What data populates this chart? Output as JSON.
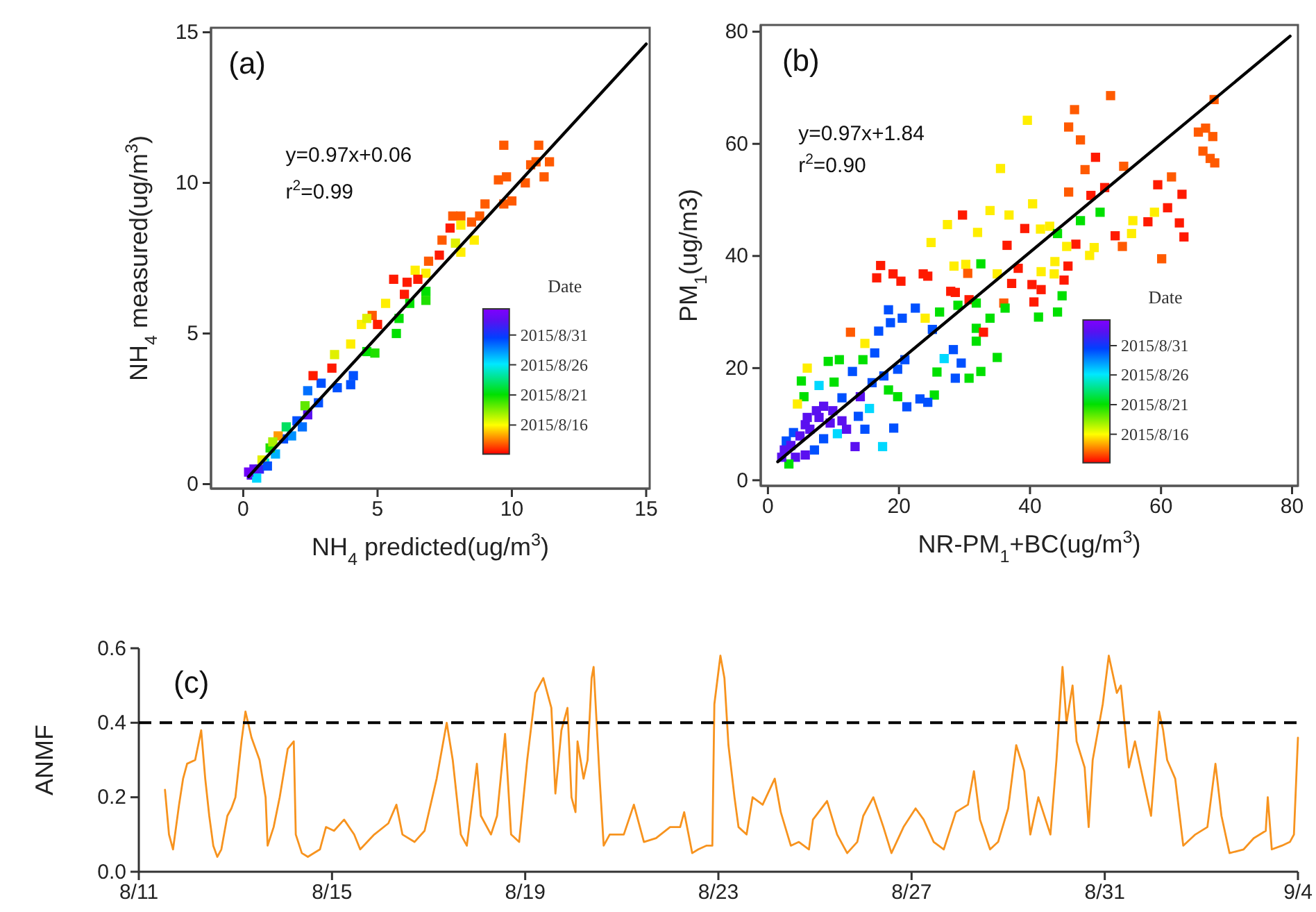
{
  "chart_data": [
    {
      "type": "scatter",
      "xlabel": "NH$_{4}$ predicted(ug/m$^{3}$)",
      "ylabel": "NH$_{4}$ measured(ug/m$^{3}$)",
      "xlim": [
        -1.2,
        15.13
      ],
      "ylim": [
        -0.15,
        15.15
      ],
      "xticks": [
        0,
        5,
        10,
        15
      ],
      "yticks": [
        0,
        5,
        10,
        15
      ],
      "annotations": [
        "(a)",
        "y=0.97x+0.06",
        "r$^{2}$=0.99",
        "Date",
        "2015/8/31",
        "2015/8/26",
        "2015/8/21",
        "2015/8/16"
      ],
      "marker": "square",
      "series": [
        {
          "x": [
            9.7,
            11.0,
            11.4,
            9.5,
            9.8,
            10.5,
            10.7,
            10.9,
            11.2,
            10.0,
            9.7,
            9.0,
            8.8,
            8.5,
            8.1,
            7.8,
            7.7,
            8.1,
            8.6,
            8.1,
            7.9,
            7.4,
            7.3,
            6.9,
            6.4,
            6.8,
            5.6,
            6.1,
            6.5,
            6.0,
            6.8,
            6.8,
            6.2,
            5.8,
            5.3,
            4.8,
            5.0,
            4.4,
            4.6,
            5.7,
            4.6,
            4.9,
            4.0,
            3.4,
            3.3,
            4.1,
            4.0,
            3.5,
            2.9,
            2.6,
            2.4,
            2.8,
            2.4,
            2.0,
            1.8,
            1.5,
            1.2,
            1.0,
            0.8,
            0.6,
            0.4,
            0.3,
            0.5,
            0.7,
            1.3,
            1.6,
            2.2,
            0.2,
            0.9,
            1.1,
            2.3
          ],
          "values": [
            11.25,
            11.25,
            10.7,
            10.1,
            10.2,
            10.0,
            10.6,
            10.7,
            10.2,
            9.4,
            9.3,
            9.3,
            8.9,
            8.7,
            8.9,
            8.9,
            8.5,
            8.6,
            8.1,
            7.7,
            8.0,
            8.1,
            7.6,
            7.4,
            7.1,
            7.0,
            6.8,
            6.7,
            6.8,
            6.3,
            6.4,
            6.1,
            6.0,
            5.5,
            6.0,
            5.6,
            5.3,
            5.3,
            5.5,
            5.0,
            4.4,
            4.35,
            4.65,
            4.3,
            3.85,
            3.6,
            3.3,
            3.2,
            3.35,
            3.6,
            3.1,
            2.7,
            2.3,
            2.1,
            1.6,
            1.5,
            1.0,
            1.2,
            0.7,
            0.5,
            0.5,
            0.3,
            0.2,
            0.8,
            1.6,
            1.9,
            1.9,
            0.4,
            0.6,
            1.4,
            2.6
          ],
          "colors": [
            "#ff5a00",
            "#ff5a00",
            "#ff5a00",
            "#ff5a00",
            "#ff5a00",
            "#ff5a00",
            "#ff5a00",
            "#ff5a00",
            "#ff5a00",
            "#ff5a00",
            "#ff5a00",
            "#ff5a00",
            "#ff5a00",
            "#ff5a00",
            "#ff5a00",
            "#ff5a00",
            "#ff1a00",
            "#ffee00",
            "#ffee00",
            "#ffee00",
            "#e0f000",
            "#ff5a00",
            "#ff1a00",
            "#ff5a00",
            "#ffee00",
            "#ffee00",
            "#ff1a00",
            "#ff1a00",
            "#ff1a00",
            "#ff1a00",
            "#00e000",
            "#20e000",
            "#00e000",
            "#00e000",
            "#ffee00",
            "#ff5a00",
            "#ff1a00",
            "#ffee00",
            "#e0f000",
            "#00e000",
            "#00e000",
            "#20e000",
            "#ffee00",
            "#e0f000",
            "#ff1a00",
            "#0050ff",
            "#0050ff",
            "#0050ff",
            "#0050ff",
            "#ff1a00",
            "#0070ff",
            "#0050ff",
            "#5a10f0",
            "#0050ff",
            "#0090ff",
            "#0050ff",
            "#00b0ff",
            "#20e000",
            "#00e8d0",
            "#3a20f8",
            "#5a10f0",
            "#5a10f0",
            "#00d8ff",
            "#e0f000",
            "#ff9900",
            "#00e060",
            "#0070ff",
            "#7000f8",
            "#0050ff",
            "#a8f000",
            "#60e800"
          ]
        },
        {
          "type": "line",
          "marker": "none",
          "x": [
            0.2,
            15
          ],
          "values": [
            0.25,
            14.61
          ],
          "color": "#000000"
        }
      ]
    },
    {
      "type": "scatter",
      "xlabel": "NR-PM$_{1}$+BC(ug/m$^{3}$)",
      "ylabel": "PM$_{1}$(ug/m3)",
      "xlim": [
        -1.1,
        80.9
      ],
      "ylim": [
        -1,
        81.2
      ],
      "xticks": [
        0,
        20,
        40,
        60,
        80
      ],
      "yticks": [
        0,
        20,
        40,
        60,
        80
      ],
      "annotations": [
        "(b)",
        "y=0.97x+1.84",
        "r$^{2}$=0.90",
        "Date",
        "2015/8/31",
        "2015/8/26",
        "2015/8/21",
        "2015/8/16"
      ],
      "marker": "square",
      "series": [
        {
          "x": [
            52.3,
            46.8,
            68.1,
            39.6,
            45.9,
            47.7,
            65.7,
            67.9,
            66.8,
            66.4,
            67.5,
            68.2,
            50.0,
            48.4,
            54.3,
            35.5,
            61.6,
            59.5,
            45.9,
            49.3,
            51.4,
            40.4,
            63.2,
            61.0,
            50.7,
            58.0,
            62.8,
            29.7,
            33.9,
            36.8,
            27.4,
            32.0,
            39.2,
            41.6,
            43.0,
            44.2,
            47.7,
            55.7,
            59.0,
            55.5,
            63.5,
            53.0,
            54.1,
            47.0,
            45.6,
            49.8,
            49.1,
            60.1,
            24.9,
            36.5,
            17.2,
            16.6,
            19.1,
            20.3,
            23.7,
            24.4,
            28.4,
            30.2,
            32.5,
            30.5,
            35.0,
            38.2,
            37.2,
            41.7,
            43.8,
            43.7,
            45.8,
            45.2,
            40.3,
            41.7,
            40.6,
            44.9,
            27.9,
            28.6,
            30.7,
            29.0,
            31.8,
            36.0,
            36.2,
            41.3,
            44.2,
            26.2,
            18.4,
            18.7,
            20.5,
            22.5,
            25.1,
            24.0,
            33.9,
            31.8,
            32.9,
            31.8,
            35.0,
            32.5,
            30.7,
            28.6,
            29.5,
            26.9,
            28.3,
            25.8,
            25.4,
            24.4,
            23.2,
            21.2,
            19.2,
            17.5,
            13.3,
            12.6,
            14.8,
            16.9,
            16.3,
            14.5,
            12.9,
            10.9,
            9.2,
            6.0,
            5.1,
            5.5,
            7.8,
            10.1,
            4.5,
            8.5,
            11.3,
            14.1,
            15.9,
            17.7,
            19.8,
            20.9,
            18.4,
            19.8,
            15.5,
            13.8,
            11.3,
            9.5,
            7.8,
            5.7,
            3.9,
            2.8,
            2.5,
            3.5,
            4.9,
            6.4,
            8.5,
            10.6,
            12.0,
            14.8,
            7.1,
            4.2,
            3.2,
            5.7,
            2.1,
            9.9,
            7.4,
            6.0
          ],
          "values": [
            68.6,
            66.1,
            67.9,
            64.2,
            63.0,
            60.7,
            62.1,
            61.3,
            62.8,
            58.7,
            57.4,
            56.6,
            57.6,
            55.4,
            56.0,
            55.6,
            54.1,
            52.7,
            51.4,
            50.8,
            52.2,
            49.3,
            51.0,
            48.6,
            47.8,
            46.1,
            45.9,
            47.3,
            48.1,
            47.3,
            45.6,
            44.2,
            44.9,
            44.8,
            45.3,
            44.0,
            46.3,
            46.3,
            47.8,
            44.0,
            43.4,
            43.6,
            41.7,
            42.1,
            41.7,
            41.5,
            40.1,
            39.5,
            42.4,
            41.9,
            38.3,
            36.1,
            36.8,
            35.5,
            36.8,
            36.4,
            38.2,
            38.5,
            38.6,
            36.9,
            36.8,
            37.8,
            35.1,
            37.2,
            39.0,
            36.8,
            38.2,
            35.7,
            34.9,
            34.0,
            31.8,
            32.9,
            33.7,
            33.5,
            32.2,
            31.2,
            31.6,
            31.6,
            30.7,
            29.1,
            30.0,
            30.0,
            30.4,
            28.1,
            28.9,
            30.7,
            26.9,
            28.9,
            28.9,
            27.1,
            26.4,
            24.8,
            21.9,
            19.4,
            18.2,
            18.2,
            20.9,
            21.7,
            23.3,
            19.3,
            15.2,
            13.9,
            14.5,
            13.1,
            9.3,
            6.0,
            6.0,
            26.4,
            24.4,
            26.6,
            22.7,
            21.5,
            19.4,
            21.5,
            21.2,
            20.0,
            17.7,
            14.9,
            16.9,
            17.5,
            13.6,
            13.2,
            14.7,
            14.9,
            17.4,
            18.6,
            19.8,
            21.5,
            16.1,
            14.9,
            12.8,
            11.4,
            10.6,
            10.2,
            11.2,
            9.9,
            8.5,
            7.0,
            5.4,
            6.2,
            7.9,
            9.1,
            7.4,
            8.3,
            9.1,
            9.1,
            5.4,
            4.1,
            2.9,
            4.5,
            4.1,
            12.4,
            12.4,
            11.2
          ],
          "colors": [
            "#ff5a00",
            "#ff5a00",
            "#ff5a00",
            "#ffee00",
            "#ff5a00",
            "#ff5a00",
            "#ff5a00",
            "#ff5a00",
            "#ff5a00",
            "#ff5a00",
            "#ff5a00",
            "#ff5a00",
            "#ff1a00",
            "#ff5a00",
            "#ff5a00",
            "#ffee00",
            "#ff5a00",
            "#ff1a00",
            "#ff5a00",
            "#ff1a00",
            "#ff1a00",
            "#ffee00",
            "#ff1a00",
            "#ff1a00",
            "#00e000",
            "#ff1a00",
            "#ff1a00",
            "#ff1a00",
            "#ffee00",
            "#ffee00",
            "#ffee00",
            "#ffee00",
            "#ff1a00",
            "#ffee00",
            "#ffee00",
            "#00e000",
            "#00e000",
            "#ffee00",
            "#ffee00",
            "#ffee00",
            "#ff1a00",
            "#ff1a00",
            "#ff5a00",
            "#ff1a00",
            "#ffee00",
            "#ffee00",
            "#ffee00",
            "#ff5a00",
            "#ffee00",
            "#ff1a00",
            "#ff1a00",
            "#ff1a00",
            "#ff1a00",
            "#ff1a00",
            "#ff1a00",
            "#ff1a00",
            "#ffee00",
            "#ffee00",
            "#00e000",
            "#ff5a00",
            "#ffee00",
            "#ff1a00",
            "#ff1a00",
            "#ffee00",
            "#ffee00",
            "#ffee00",
            "#ff1a00",
            "#ff1a00",
            "#ff1a00",
            "#ff1a00",
            "#ff1a00",
            "#00e000",
            "#ff1a00",
            "#ff1a00",
            "#ff1a00",
            "#00e000",
            "#00e000",
            "#ff5a00",
            "#00e000",
            "#00e000",
            "#00e000",
            "#00e000",
            "#0050ff",
            "#0050ff",
            "#0050ff",
            "#0050ff",
            "#0050ff",
            "#ffee00",
            "#00e000",
            "#00e000",
            "#ff1a00",
            "#00e000",
            "#00e000",
            "#00e000",
            "#00e000",
            "#0050ff",
            "#0050ff",
            "#00d8ff",
            "#0050ff",
            "#00e000",
            "#00e000",
            "#0050ff",
            "#0050ff",
            "#0050ff",
            "#0050ff",
            "#00d8ff",
            "#5a10f0",
            "#ff5a00",
            "#ffee00",
            "#0050ff",
            "#0050ff",
            "#00e000",
            "#0050ff",
            "#00e000",
            "#00e000",
            "#ffee00",
            "#00e000",
            "#00e000",
            "#00d8ff",
            "#00e000",
            "#ffee00",
            "#5a10f0",
            "#0050ff",
            "#5a10f0",
            "#0050ff",
            "#0050ff",
            "#0050ff",
            "#0050ff",
            "#00e000",
            "#00e000",
            "#00d8ff",
            "#0050ff",
            "#5a10f0",
            "#5a10f0",
            "#5a10f0",
            "#5a10f0",
            "#0050ff",
            "#0050ff",
            "#5a10f0",
            "#5a10f0",
            "#5a10f0",
            "#5a10f0",
            "#0050ff",
            "#00d8ff",
            "#5a10f0",
            "#0050ff",
            "#0050ff",
            "#5a10f0",
            "#00e000",
            "#5a10f0",
            "#5a10f0",
            "#5a10f0",
            "#5a10f0",
            "#5a10f0"
          ]
        },
        {
          "type": "line",
          "marker": "none",
          "x": [
            1.5,
            79.7
          ],
          "values": [
            3.3,
            79.2
          ],
          "color": "#000000"
        }
      ]
    },
    {
      "type": "line",
      "ylabel": "ANMF",
      "xlim": [
        "2015-08-11",
        "2015-09-04"
      ],
      "ylim": [
        0,
        0.6
      ],
      "xticks": [
        {
          "value": "2015-08-11",
          "label": "8/11"
        },
        {
          "value": "2015-08-15",
          "label": "8/15"
        },
        {
          "value": "2015-08-19",
          "label": "8/19"
        },
        {
          "value": "2015-08-23",
          "label": "8/23"
        },
        {
          "value": "2015-08-27",
          "label": "8/27"
        },
        {
          "value": "2015-08-31",
          "label": "8/31"
        },
        {
          "value": "2015-09-04",
          "label": "9/4"
        }
      ],
      "yticks": [
        {
          "value": 0,
          "label": "0.0"
        },
        {
          "value": 0.2,
          "label": "0.2"
        },
        {
          "value": 0.4,
          "label": "0.4"
        },
        {
          "value": 0.6,
          "label": "0.6"
        }
      ],
      "annotations": [
        "(c)"
      ],
      "ref_lines": [
        {
          "axis": "y",
          "value": 0.4,
          "color": "#000000",
          "line_style": "dashed"
        }
      ],
      "series": [
        {
          "color": "#f7931e",
          "x": [
            "2015-08-11T13:00",
            "2015-08-11T15:00",
            "2015-08-11T17:00",
            "2015-08-11T20:00",
            "2015-08-11T22:00",
            "2015-08-12T00:00",
            "2015-08-12T04:00",
            "2015-08-12T07:00",
            "2015-08-12T09:00",
            "2015-08-12T11:00",
            "2015-08-12T13:00",
            "2015-08-12T15:00",
            "2015-08-12T17:00",
            "2015-08-12T20:00",
            "2015-08-12T22:00",
            "2015-08-13T00:00",
            "2015-08-13T03:00",
            "2015-08-13T05:00",
            "2015-08-13T08:00",
            "2015-08-13T12:00",
            "2015-08-13T15:00",
            "2015-08-13T16:00",
            "2015-08-13T19:00",
            "2015-08-13T22:00",
            "2015-08-14T02:00",
            "2015-08-14T05:00",
            "2015-08-14T06:00",
            "2015-08-14T09:00",
            "2015-08-14T12:00",
            "2015-08-14T18:00",
            "2015-08-14T21:00",
            "2015-08-15T01:00",
            "2015-08-15T06:00",
            "2015-08-15T11:00",
            "2015-08-15T14:00",
            "2015-08-15T21:00",
            "2015-08-16T04:00",
            "2015-08-16T08:00",
            "2015-08-16T11:00",
            "2015-08-16T17:00",
            "2015-08-16T22:00",
            "2015-08-17T04:00",
            "2015-08-17T09:00",
            "2015-08-17T12:00",
            "2015-08-17T16:00",
            "2015-08-17T19:00",
            "2015-08-18T00:00",
            "2015-08-18T02:00",
            "2015-08-18T07:00",
            "2015-08-18T10:00",
            "2015-08-18T14:00",
            "2015-08-18T17:00",
            "2015-08-18T21:00",
            "2015-08-19T01:00",
            "2015-08-19T05:00",
            "2015-08-19T09:00",
            "2015-08-19T13:00",
            "2015-08-19T15:00",
            "2015-08-19T18:00",
            "2015-08-19T21:00",
            "2015-08-19T23:00",
            "2015-08-20T01:00",
            "2015-08-20T02:00",
            "2015-08-20T05:00",
            "2015-08-20T07:00",
            "2015-08-20T09:00",
            "2015-08-20T10:00",
            "2015-08-20T13:00",
            "2015-08-20T15:00",
            "2015-08-20T18:00",
            "2015-08-21T01:00",
            "2015-08-21T06:00",
            "2015-08-21T11:00",
            "2015-08-21T17:00",
            "2015-08-22T00:00",
            "2015-08-22T05:00",
            "2015-08-22T07:00",
            "2015-08-22T11:00",
            "2015-08-22T14:00",
            "2015-08-22T18:00",
            "2015-08-22T21:00",
            "2015-08-22T22:00",
            "2015-08-23T01:00",
            "2015-08-23T03:00",
            "2015-08-23T05:00",
            "2015-08-23T08:00",
            "2015-08-23T10:00",
            "2015-08-23T14:00",
            "2015-08-23T17:00",
            "2015-08-23T22:00",
            "2015-08-24T04:00",
            "2015-08-24T07:00",
            "2015-08-24T12:00",
            "2015-08-24T16:00",
            "2015-08-24T21:00",
            "2015-08-24T23:00",
            "2015-08-25T06:00",
            "2015-08-25T11:00",
            "2015-08-25T16:00",
            "2015-08-25T21:00",
            "2015-08-26T00:00",
            "2015-08-26T05:00",
            "2015-08-26T10:00",
            "2015-08-26T14:00",
            "2015-08-26T20:00",
            "2015-08-27T02:00",
            "2015-08-27T06:00",
            "2015-08-27T11:00",
            "2015-08-27T16:00",
            "2015-08-27T22:00",
            "2015-08-28T04:00",
            "2015-08-28T07:00",
            "2015-08-28T10:00",
            "2015-08-28T15:00",
            "2015-08-28T19:00",
            "2015-08-29T00:00",
            "2015-08-29T04:00",
            "2015-08-29T08:00",
            "2015-08-29T11:00",
            "2015-08-29T15:00",
            "2015-08-29T21:00",
            "2015-08-30T00:00",
            "2015-08-30T03:00",
            "2015-08-30T05:00",
            "2015-08-30T08:00",
            "2015-08-30T10:00",
            "2015-08-30T14:00",
            "2015-08-30T16:00",
            "2015-08-30T18:00",
            "2015-08-30T23:00",
            "2015-08-31T02:00",
            "2015-08-31T06:00",
            "2015-08-31T08:00",
            "2015-08-31T12:00",
            "2015-08-31T15:00",
            "2015-08-31T19:00",
            "2015-08-31T23:00",
            "2015-09-01T03:00",
            "2015-09-01T05:00",
            "2015-09-01T07:00",
            "2015-09-01T11:00",
            "2015-09-01T15:00",
            "2015-09-01T21:00",
            "2015-09-02T03:00",
            "2015-09-02T07:00",
            "2015-09-02T10:00",
            "2015-09-02T14:00",
            "2015-09-02T21:00",
            "2015-09-03T02:00",
            "2015-09-03T08:00",
            "2015-09-03T09:00",
            "2015-09-03T11:00",
            "2015-09-03T16:00",
            "2015-09-03T20:00",
            "2015-09-03T22:00",
            "2015-09-04T00:00"
          ],
          "values": [
            0.22,
            0.1,
            0.06,
            0.18,
            0.25,
            0.29,
            0.3,
            0.38,
            0.25,
            0.15,
            0.07,
            0.04,
            0.06,
            0.15,
            0.17,
            0.2,
            0.35,
            0.43,
            0.36,
            0.3,
            0.2,
            0.07,
            0.12,
            0.2,
            0.33,
            0.35,
            0.1,
            0.05,
            0.04,
            0.06,
            0.12,
            0.11,
            0.14,
            0.1,
            0.06,
            0.1,
            0.13,
            0.18,
            0.1,
            0.08,
            0.11,
            0.25,
            0.4,
            0.3,
            0.1,
            0.07,
            0.29,
            0.15,
            0.1,
            0.15,
            0.37,
            0.1,
            0.08,
            0.3,
            0.48,
            0.52,
            0.44,
            0.21,
            0.38,
            0.44,
            0.2,
            0.16,
            0.35,
            0.25,
            0.3,
            0.52,
            0.55,
            0.25,
            0.07,
            0.1,
            0.1,
            0.18,
            0.08,
            0.09,
            0.12,
            0.12,
            0.16,
            0.05,
            0.06,
            0.07,
            0.07,
            0.45,
            0.58,
            0.52,
            0.34,
            0.2,
            0.12,
            0.1,
            0.2,
            0.18,
            0.25,
            0.16,
            0.07,
            0.08,
            0.06,
            0.14,
            0.19,
            0.1,
            0.05,
            0.08,
            0.15,
            0.2,
            0.12,
            0.05,
            0.12,
            0.17,
            0.14,
            0.08,
            0.06,
            0.16,
            0.18,
            0.27,
            0.14,
            0.06,
            0.08,
            0.17,
            0.34,
            0.27,
            0.1,
            0.2,
            0.1,
            0.3,
            0.55,
            0.4,
            0.5,
            0.35,
            0.28,
            0.12,
            0.3,
            0.45,
            0.58,
            0.48,
            0.5,
            0.28,
            0.35,
            0.25,
            0.15,
            0.43,
            0.38,
            0.3,
            0.25,
            0.07,
            0.1,
            0.12,
            0.29,
            0.15,
            0.05,
            0.06,
            0.09,
            0.11,
            0.2,
            0.06,
            0.07,
            0.08,
            0.1,
            0.36
          ]
        }
      ]
    }
  ]
}
